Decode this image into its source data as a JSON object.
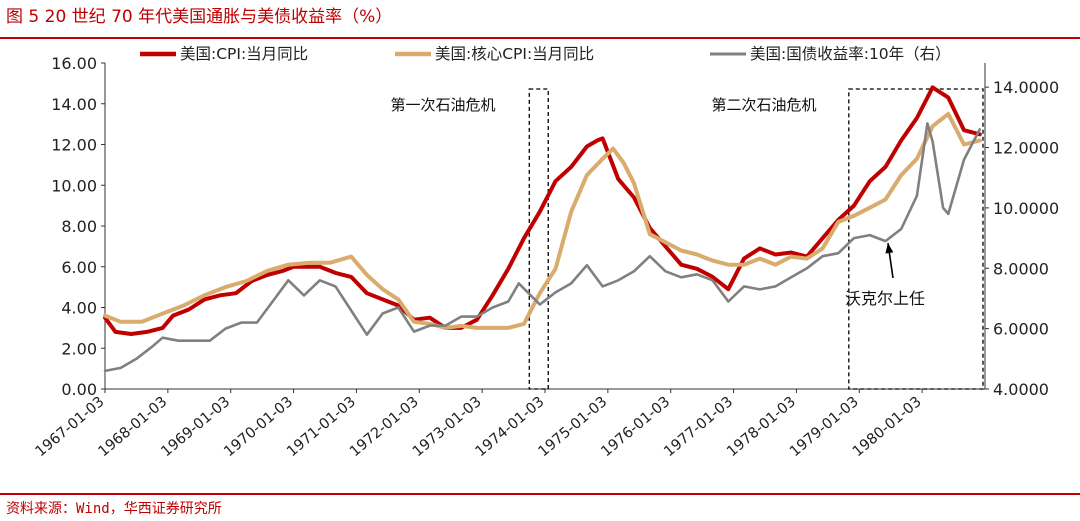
{
  "figure": {
    "title": "图 5  20 世纪 70 年代美国通胀与美债收益率（%）",
    "source": "资料来源：Wind，华西证券研究所"
  },
  "chart_data": {
    "type": "line",
    "x_ticks": [
      "1967-01-03",
      "1968-01-03",
      "1969-01-03",
      "1970-01-03",
      "1971-01-03",
      "1972-01-03",
      "1973-01-03",
      "1974-01-03",
      "1975-01-03",
      "1976-01-03",
      "1977-01-03",
      "1978-01-03",
      "1979-01-03",
      "1980-01-03"
    ],
    "x_range": [
      "1967-01",
      "1981-01"
    ],
    "y_left": {
      "range": [
        0,
        16
      ],
      "ticks": [
        "0.00",
        "2.00",
        "4.00",
        "6.00",
        "8.00",
        "10.00",
        "12.00",
        "14.00",
        "16.00"
      ]
    },
    "y_right": {
      "range": [
        4,
        14.8
      ],
      "ticks": [
        "4.0000",
        "6.0000",
        "8.0000",
        "10.0000",
        "12.0000",
        "14.0000"
      ],
      "label_series": "美国:国债收益率:10年（右）"
    },
    "grid": false,
    "legend_position": "top",
    "series": [
      {
        "name": "美国:CPI:当月同比",
        "axis": "left",
        "color": "#c00000",
        "points": [
          [
            "1967-01",
            3.5
          ],
          [
            "1967-03",
            2.8
          ],
          [
            "1967-06",
            2.7
          ],
          [
            "1967-09",
            2.8
          ],
          [
            "1967-12",
            3.0
          ],
          [
            "1968-02",
            3.6
          ],
          [
            "1968-05",
            3.9
          ],
          [
            "1968-08",
            4.4
          ],
          [
            "1968-11",
            4.6
          ],
          [
            "1969-02",
            4.7
          ],
          [
            "1969-05",
            5.3
          ],
          [
            "1969-08",
            5.6
          ],
          [
            "1969-11",
            5.8
          ],
          [
            "1970-01",
            6.0
          ],
          [
            "1970-03",
            6.0
          ],
          [
            "1970-06",
            6.0
          ],
          [
            "1970-09",
            5.7
          ],
          [
            "1970-12",
            5.5
          ],
          [
            "1971-03",
            4.7
          ],
          [
            "1971-06",
            4.4
          ],
          [
            "1971-09",
            4.1
          ],
          [
            "1971-12",
            3.4
          ],
          [
            "1972-03",
            3.5
          ],
          [
            "1972-06",
            3.0
          ],
          [
            "1972-09",
            3.0
          ],
          [
            "1972-12",
            3.4
          ],
          [
            "1973-03",
            4.6
          ],
          [
            "1973-06",
            5.9
          ],
          [
            "1973-09",
            7.4
          ],
          [
            "1973-12",
            8.7
          ],
          [
            "1974-03",
            10.2
          ],
          [
            "1974-06",
            10.9
          ],
          [
            "1974-09",
            11.9
          ],
          [
            "1974-11",
            12.2
          ],
          [
            "1974-12",
            12.3
          ],
          [
            "1975-03",
            10.3
          ],
          [
            "1975-06",
            9.4
          ],
          [
            "1975-09",
            7.9
          ],
          [
            "1975-12",
            7.0
          ],
          [
            "1976-03",
            6.1
          ],
          [
            "1976-06",
            5.9
          ],
          [
            "1976-09",
            5.5
          ],
          [
            "1976-12",
            4.9
          ],
          [
            "1977-03",
            6.4
          ],
          [
            "1977-06",
            6.9
          ],
          [
            "1977-09",
            6.6
          ],
          [
            "1977-12",
            6.7
          ],
          [
            "1978-03",
            6.5
          ],
          [
            "1978-06",
            7.4
          ],
          [
            "1978-09",
            8.3
          ],
          [
            "1978-12",
            9.0
          ],
          [
            "1979-03",
            10.2
          ],
          [
            "1979-06",
            10.9
          ],
          [
            "1979-09",
            12.2
          ],
          [
            "1979-12",
            13.3
          ],
          [
            "1980-03",
            14.8
          ],
          [
            "1980-06",
            14.3
          ],
          [
            "1980-09",
            12.7
          ],
          [
            "1980-12",
            12.5
          ]
        ]
      },
      {
        "name": "美国:核心CPI:当月同比",
        "axis": "left",
        "color": "#d9ab6c",
        "points": [
          [
            "1967-01",
            3.6
          ],
          [
            "1967-04",
            3.3
          ],
          [
            "1967-08",
            3.3
          ],
          [
            "1967-12",
            3.7
          ],
          [
            "1968-04",
            4.1
          ],
          [
            "1968-08",
            4.6
          ],
          [
            "1968-12",
            5.0
          ],
          [
            "1969-04",
            5.3
          ],
          [
            "1969-08",
            5.8
          ],
          [
            "1969-12",
            6.1
          ],
          [
            "1970-04",
            6.2
          ],
          [
            "1970-08",
            6.2
          ],
          [
            "1970-12",
            6.5
          ],
          [
            "1971-03",
            5.6
          ],
          [
            "1971-06",
            4.9
          ],
          [
            "1971-09",
            4.4
          ],
          [
            "1971-12",
            3.3
          ],
          [
            "1972-03",
            3.2
          ],
          [
            "1972-06",
            3.0
          ],
          [
            "1972-09",
            3.1
          ],
          [
            "1972-12",
            3.0
          ],
          [
            "1973-03",
            3.0
          ],
          [
            "1973-06",
            3.0
          ],
          [
            "1973-09",
            3.2
          ],
          [
            "1973-12",
            4.7
          ],
          [
            "1974-03",
            5.9
          ],
          [
            "1974-06",
            8.7
          ],
          [
            "1974-09",
            10.5
          ],
          [
            "1974-12",
            11.3
          ],
          [
            "1975-02",
            11.8
          ],
          [
            "1975-04",
            11.1
          ],
          [
            "1975-06",
            10.1
          ],
          [
            "1975-09",
            7.6
          ],
          [
            "1975-12",
            7.2
          ],
          [
            "1976-03",
            6.8
          ],
          [
            "1976-06",
            6.6
          ],
          [
            "1976-09",
            6.3
          ],
          [
            "1976-12",
            6.1
          ],
          [
            "1977-03",
            6.1
          ],
          [
            "1977-06",
            6.4
          ],
          [
            "1977-09",
            6.1
          ],
          [
            "1977-12",
            6.5
          ],
          [
            "1978-03",
            6.4
          ],
          [
            "1978-06",
            6.9
          ],
          [
            "1978-09",
            8.2
          ],
          [
            "1978-12",
            8.5
          ],
          [
            "1979-03",
            8.9
          ],
          [
            "1979-06",
            9.3
          ],
          [
            "1979-09",
            10.5
          ],
          [
            "1979-12",
            11.3
          ],
          [
            "1980-03",
            12.9
          ],
          [
            "1980-06",
            13.5
          ],
          [
            "1980-09",
            12.0
          ],
          [
            "1980-12",
            12.2
          ]
        ]
      },
      {
        "name": "美国:国债收益率:10年（右）",
        "axis": "right",
        "color": "#808080",
        "points": [
          [
            "1967-01",
            4.6
          ],
          [
            "1967-04",
            4.7
          ],
          [
            "1967-07",
            5.0
          ],
          [
            "1967-10",
            5.4
          ],
          [
            "1967-12",
            5.7
          ],
          [
            "1968-03",
            5.6
          ],
          [
            "1968-06",
            5.6
          ],
          [
            "1968-09",
            5.6
          ],
          [
            "1968-12",
            6.0
          ],
          [
            "1969-03",
            6.2
          ],
          [
            "1969-06",
            6.2
          ],
          [
            "1969-09",
            6.9
          ],
          [
            "1969-12",
            7.6
          ],
          [
            "1970-03",
            7.1
          ],
          [
            "1970-06",
            7.6
          ],
          [
            "1970-09",
            7.4
          ],
          [
            "1970-12",
            6.6
          ],
          [
            "1971-03",
            5.8
          ],
          [
            "1971-06",
            6.5
          ],
          [
            "1971-09",
            6.7
          ],
          [
            "1971-12",
            5.9
          ],
          [
            "1972-03",
            6.1
          ],
          [
            "1972-06",
            6.1
          ],
          [
            "1972-09",
            6.4
          ],
          [
            "1972-12",
            6.4
          ],
          [
            "1973-03",
            6.7
          ],
          [
            "1973-06",
            6.9
          ],
          [
            "1973-08",
            7.5
          ],
          [
            "1973-12",
            6.8
          ],
          [
            "1974-03",
            7.2
          ],
          [
            "1974-06",
            7.5
          ],
          [
            "1974-09",
            8.1
          ],
          [
            "1974-12",
            7.4
          ],
          [
            "1975-03",
            7.6
          ],
          [
            "1975-06",
            7.9
          ],
          [
            "1975-09",
            8.4
          ],
          [
            "1975-12",
            7.9
          ],
          [
            "1976-03",
            7.7
          ],
          [
            "1976-06",
            7.8
          ],
          [
            "1976-09",
            7.6
          ],
          [
            "1976-12",
            6.9
          ],
          [
            "1977-03",
            7.4
          ],
          [
            "1977-06",
            7.3
          ],
          [
            "1977-09",
            7.4
          ],
          [
            "1977-12",
            7.7
          ],
          [
            "1978-03",
            8.0
          ],
          [
            "1978-06",
            8.4
          ],
          [
            "1978-09",
            8.5
          ],
          [
            "1978-12",
            9.0
          ],
          [
            "1979-03",
            9.1
          ],
          [
            "1979-06",
            8.9
          ],
          [
            "1979-09",
            9.3
          ],
          [
            "1979-12",
            10.4
          ],
          [
            "1980-02",
            12.8
          ],
          [
            "1980-03",
            12.2
          ],
          [
            "1980-05",
            10.0
          ],
          [
            "1980-06",
            9.8
          ],
          [
            "1980-09",
            11.6
          ],
          [
            "1980-12",
            12.6
          ]
        ]
      }
    ],
    "annotations": [
      {
        "text": "第一次石油危机",
        "box": [
          "1973-10",
          "1974-02"
        ]
      },
      {
        "text": "第二次石油危机",
        "box": [
          "1978-11",
          "1981-01"
        ]
      },
      {
        "text": "沃克尔上任",
        "arrow_to": [
          "1979-08",
          9.1
        ]
      }
    ]
  }
}
